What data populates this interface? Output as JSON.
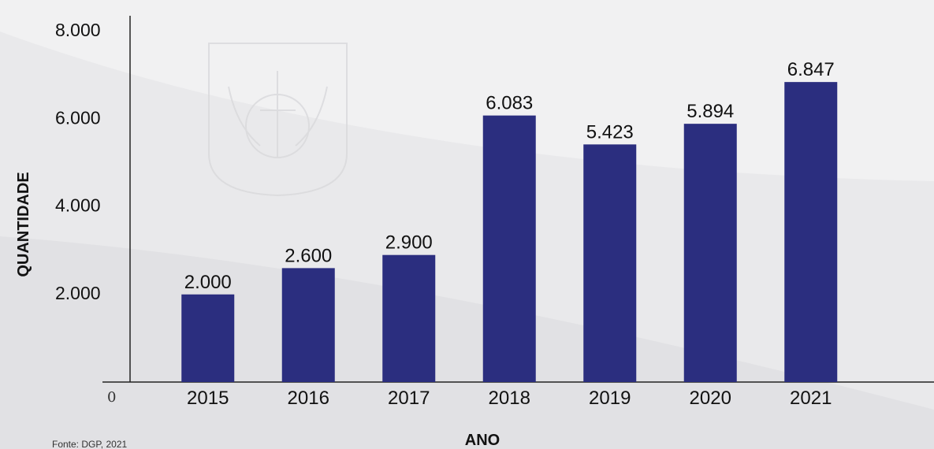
{
  "chart_data": {
    "type": "bar",
    "categories": [
      "2015",
      "2016",
      "2017",
      "2018",
      "2019",
      "2020",
      "2021"
    ],
    "values": [
      2000,
      2600,
      2900,
      6083,
      5423,
      5894,
      6847
    ],
    "value_labels": [
      "2.000",
      "2.600",
      "2.900",
      "6.083",
      "5.423",
      "5.894",
      "6.847"
    ],
    "y_ticks": [
      2000,
      4000,
      6000,
      8000
    ],
    "y_tick_labels": [
      "2.000",
      "4.000",
      "6.000",
      "8.000"
    ],
    "zero_label": "0",
    "xlabel": "ANO",
    "ylabel": "QUANTIDADE",
    "ylim": [
      0,
      8000
    ],
    "grid": false,
    "bar_color": "#2b2e7f",
    "source": "Fonte: DGP, 2021"
  }
}
